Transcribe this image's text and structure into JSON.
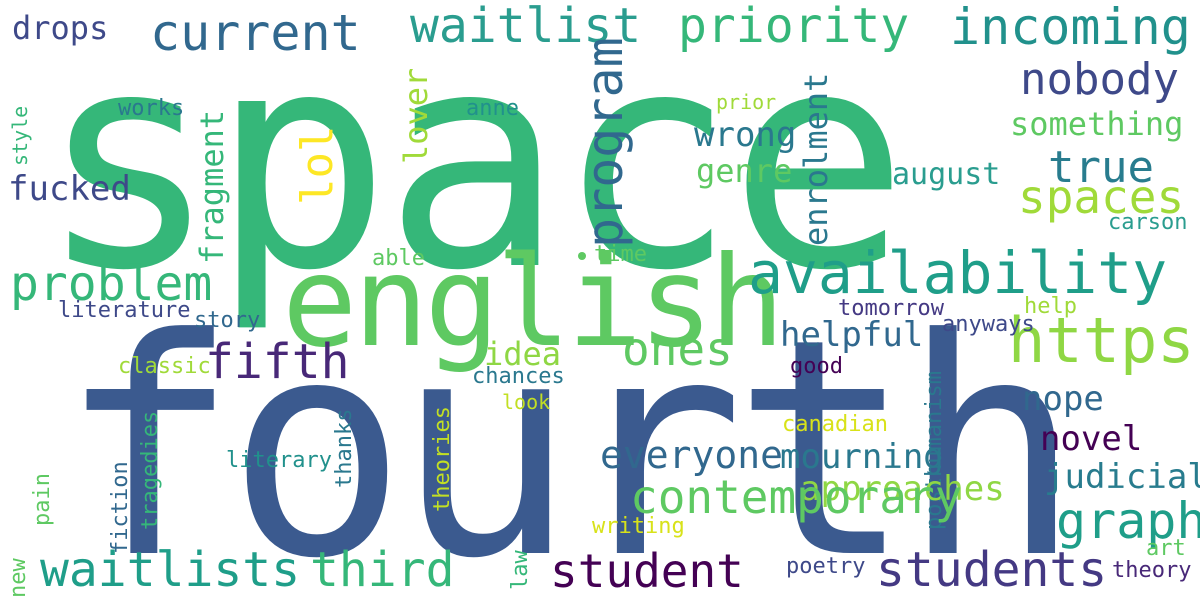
{
  "cloud": {
    "words": [
      {
        "text": "space",
        "color": "#35b779"
      },
      {
        "text": "fourth",
        "color": "#3b5a8f"
      },
      {
        "text": "english",
        "color": "#5ec962"
      },
      {
        "text": "waitlist",
        "color": "#2a9d8f"
      },
      {
        "text": "priority",
        "color": "#35b779"
      },
      {
        "text": "incoming",
        "color": "#21918c"
      },
      {
        "text": "current",
        "color": "#31688e"
      },
      {
        "text": "drops",
        "color": "#3e4989"
      },
      {
        "text": "nobody",
        "color": "#3e4989"
      },
      {
        "text": "availability",
        "color": "#1f9e89"
      },
      {
        "text": "https",
        "color": "#8fd744"
      },
      {
        "text": "spaces",
        "color": "#a0da39"
      },
      {
        "text": "true",
        "color": "#287c8e"
      },
      {
        "text": "something",
        "color": "#5ec962"
      },
      {
        "text": "august",
        "color": "#2a9d8f"
      },
      {
        "text": "carson",
        "color": "#2a9d8f"
      },
      {
        "text": "ones",
        "color": "#5ec962"
      },
      {
        "text": "wrong",
        "color": "#2a788e"
      },
      {
        "text": "genre",
        "color": "#5ec962"
      },
      {
        "text": "problem",
        "color": "#35b779"
      },
      {
        "text": "fucked",
        "color": "#3e4989"
      },
      {
        "text": "fifth",
        "color": "#482878"
      },
      {
        "text": "lol",
        "color": "#fde725"
      },
      {
        "text": "program",
        "color": "#31688e"
      },
      {
        "text": "enrolment",
        "color": "#2a788e"
      },
      {
        "text": "fragment",
        "color": "#35b779"
      },
      {
        "text": "lover",
        "color": "#a0da39"
      },
      {
        "text": "style",
        "color": "#2a788e"
      },
      {
        "text": "pain",
        "color": "#21918c"
      },
      {
        "text": "new",
        "color": "#a0da39"
      },
      {
        "text": "tragedies",
        "color": "#35b779"
      },
      {
        "text": "fiction",
        "color": "#5ec962"
      },
      {
        "text": "thanks",
        "color": "#5ec962"
      },
      {
        "text": "theories",
        "color": "#3e4989"
      },
      {
        "text": "law",
        "color": "#31688e"
      },
      {
        "text": "posthumanism",
        "color": "#443983"
      },
      {
        "text": "works",
        "color": "#a0da39"
      },
      {
        "text": "anne",
        "color": "#3e4989"
      },
      {
        "text": "prior",
        "color": "#31688e"
      },
      {
        "text": "able",
        "color": "#8fd744"
      },
      {
        "text": "time",
        "color": "#a0da39"
      },
      {
        "text": "literature",
        "color": "#2a788e"
      },
      {
        "text": "story",
        "color": "#440154"
      },
      {
        "text": "tomorrow",
        "color": "#31688e"
      },
      {
        "text": "help",
        "color": "#c2df23"
      },
      {
        "text": "anyways",
        "color": "#440154"
      },
      {
        "text": "helpful",
        "color": "#31688e"
      },
      {
        "text": "idea",
        "color": "#2a788e"
      },
      {
        "text": "classic",
        "color": "#d8e219"
      },
      {
        "text": "chances",
        "color": "#287c8e"
      },
      {
        "text": "good",
        "color": "#8fd744"
      },
      {
        "text": "nope",
        "color": "#5ec962"
      },
      {
        "text": "look",
        "color": "#1f9e89"
      },
      {
        "text": "novel",
        "color": "#21918c"
      },
      {
        "text": "everyone",
        "color": "#5ec962"
      },
      {
        "text": "mourning",
        "color": "#35b779"
      },
      {
        "text": "canadian",
        "color": "#31688e"
      },
      {
        "text": "judicial",
        "color": "#2a788e"
      },
      {
        "text": "approaches",
        "color": "#c2df23"
      },
      {
        "text": "contemporary",
        "color": "#35b779"
      },
      {
        "text": "graphic",
        "color": "#2a788e"
      },
      {
        "text": "literary",
        "color": "#5ec962"
      },
      {
        "text": "waitlists",
        "color": "#1f9e89"
      },
      {
        "text": "third",
        "color": "#35b779"
      },
      {
        "text": "student",
        "color": "#440154"
      },
      {
        "text": "students",
        "color": "#443983"
      },
      {
        "text": "writing",
        "color": "#d8e219"
      },
      {
        "text": "poetry",
        "color": "#3e4989"
      },
      {
        "text": "art",
        "color": "#5ec962"
      },
      {
        "text": "theory",
        "color": "#482878"
      }
    ]
  }
}
